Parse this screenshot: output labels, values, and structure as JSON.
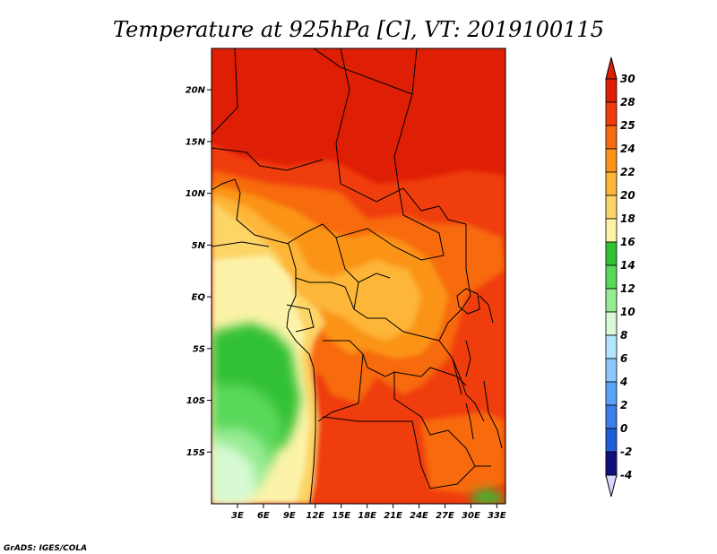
{
  "title": "Temperature at 925hPa [C], VT: 2019100115",
  "credit": "GrADS: IGES/COLA",
  "map": {
    "lon_range": [
      0,
      34
    ],
    "lat_range": [
      -20,
      24
    ],
    "lat_ticks": [
      {
        "value": 20,
        "label": "20N"
      },
      {
        "value": 15,
        "label": "15N"
      },
      {
        "value": 10,
        "label": "10N"
      },
      {
        "value": 5,
        "label": "5N"
      },
      {
        "value": 0,
        "label": "EQ"
      },
      {
        "value": -5,
        "label": "5S"
      },
      {
        "value": -10,
        "label": "10S"
      },
      {
        "value": -15,
        "label": "15S"
      }
    ],
    "lon_ticks": [
      {
        "value": 3,
        "label": "3E"
      },
      {
        "value": 6,
        "label": "6E"
      },
      {
        "value": 9,
        "label": "9E"
      },
      {
        "value": 12,
        "label": "12E"
      },
      {
        "value": 15,
        "label": "15E"
      },
      {
        "value": 18,
        "label": "18E"
      },
      {
        "value": 21,
        "label": "21E"
      },
      {
        "value": 24,
        "label": "24E"
      },
      {
        "value": 27,
        "label": "27E"
      },
      {
        "value": 30,
        "label": "30E"
      },
      {
        "value": 33,
        "label": "33E"
      }
    ],
    "ocean_color": "#fce88a",
    "land_color": "#de1e05",
    "border_color": "#000000"
  },
  "colorbar": {
    "levels": [
      {
        "label": "30",
        "color": "#de1e05"
      },
      {
        "label": "28",
        "color": "#f03c0c"
      },
      {
        "label": "25",
        "color": "#f76a10"
      },
      {
        "label": "24",
        "color": "#fb9418"
      },
      {
        "label": "22",
        "color": "#fdb638"
      },
      {
        "label": "20",
        "color": "#fcd566"
      },
      {
        "label": "18",
        "color": "#fdf3a8"
      },
      {
        "label": "16",
        "color": "#33c134"
      },
      {
        "label": "14",
        "color": "#5ad85a"
      },
      {
        "label": "12",
        "color": "#95ec93"
      },
      {
        "label": "10",
        "color": "#d7f9d3"
      },
      {
        "label": "8",
        "color": "#b4e7fd"
      },
      {
        "label": "6",
        "color": "#8ec7fb"
      },
      {
        "label": "4",
        "color": "#5aa3f5"
      },
      {
        "label": "2",
        "color": "#3c7eea"
      },
      {
        "label": "0",
        "color": "#1f5ed9"
      },
      {
        "label": "-2",
        "color": "#1448c2"
      },
      {
        "label": "-4",
        "color": "#0a2e98"
      }
    ],
    "top_extend_color": "#de1e05",
    "bottom_extend_color": "#d7d7ff",
    "bottom_inner_color": "#10107a"
  }
}
